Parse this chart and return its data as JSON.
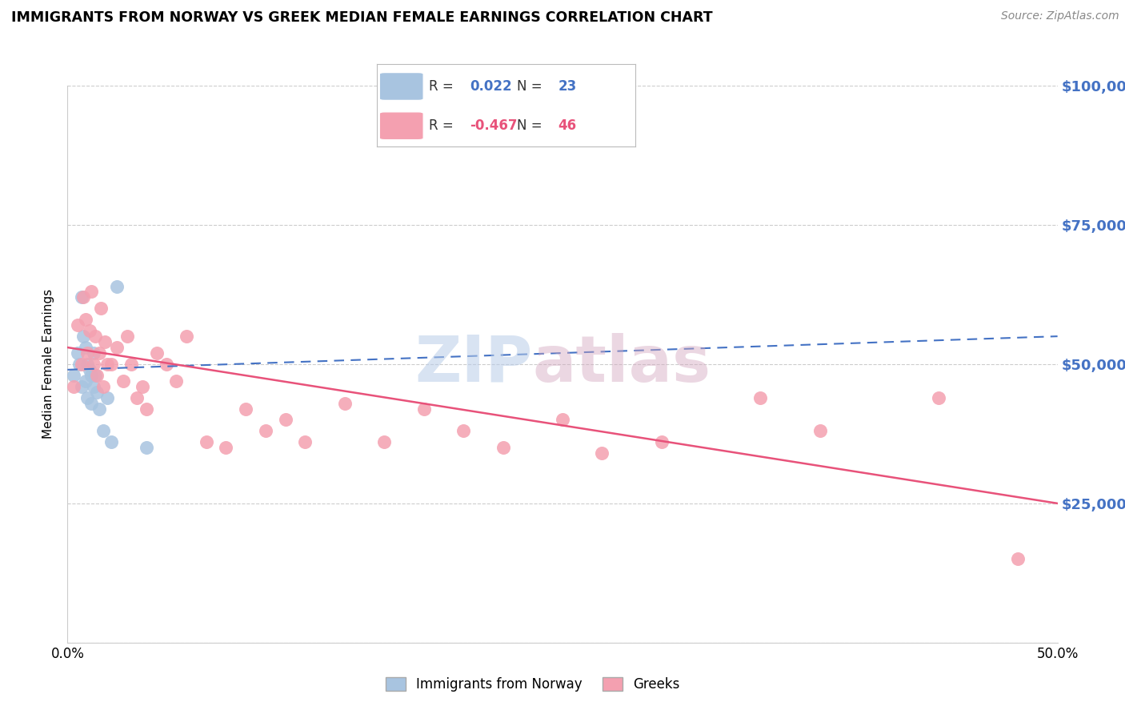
{
  "title": "IMMIGRANTS FROM NORWAY VS GREEK MEDIAN FEMALE EARNINGS CORRELATION CHART",
  "source": "Source: ZipAtlas.com",
  "ylabel": "Median Female Earnings",
  "xlim": [
    0,
    0.5
  ],
  "ylim": [
    0,
    100000
  ],
  "yticks": [
    0,
    25000,
    50000,
    75000,
    100000
  ],
  "ytick_labels": [
    "",
    "$25,000",
    "$50,000",
    "$75,000",
    "$100,000"
  ],
  "xtick_labels": [
    "0.0%",
    "",
    "",
    "",
    "",
    "50.0%"
  ],
  "xticks": [
    0.0,
    0.1,
    0.2,
    0.3,
    0.4,
    0.5
  ],
  "norway_R": 0.022,
  "norway_N": 23,
  "greek_R": -0.467,
  "greek_N": 46,
  "norway_color": "#a8c4e0",
  "greek_color": "#f4a0b0",
  "norway_line_color": "#4472c4",
  "greek_line_color": "#e8527a",
  "legend_norway_fill": "#a8c4e0",
  "legend_greek_fill": "#f4a0b0",
  "yaxis_label_color": "#4472c4",
  "background_color": "#ffffff",
  "watermark_zip": "ZIP",
  "watermark_atlas": "atlas",
  "norway_x": [
    0.003,
    0.005,
    0.006,
    0.007,
    0.007,
    0.008,
    0.009,
    0.009,
    0.01,
    0.01,
    0.011,
    0.012,
    0.012,
    0.013,
    0.013,
    0.014,
    0.015,
    0.016,
    0.018,
    0.02,
    0.022,
    0.025,
    0.04
  ],
  "norway_y": [
    48000,
    52000,
    50000,
    62000,
    46000,
    55000,
    53000,
    47000,
    50000,
    44000,
    49000,
    48000,
    43000,
    52000,
    46000,
    48000,
    45000,
    42000,
    38000,
    44000,
    36000,
    64000,
    35000
  ],
  "greek_x": [
    0.003,
    0.005,
    0.007,
    0.008,
    0.009,
    0.01,
    0.011,
    0.012,
    0.013,
    0.014,
    0.015,
    0.016,
    0.017,
    0.018,
    0.019,
    0.02,
    0.022,
    0.025,
    0.028,
    0.03,
    0.032,
    0.035,
    0.038,
    0.04,
    0.045,
    0.05,
    0.055,
    0.06,
    0.07,
    0.08,
    0.09,
    0.1,
    0.11,
    0.12,
    0.14,
    0.16,
    0.18,
    0.2,
    0.22,
    0.25,
    0.27,
    0.3,
    0.35,
    0.38,
    0.44,
    0.48
  ],
  "greek_y": [
    46000,
    57000,
    50000,
    62000,
    58000,
    52000,
    56000,
    63000,
    50000,
    55000,
    48000,
    52000,
    60000,
    46000,
    54000,
    50000,
    50000,
    53000,
    47000,
    55000,
    50000,
    44000,
    46000,
    42000,
    52000,
    50000,
    47000,
    55000,
    36000,
    35000,
    42000,
    38000,
    40000,
    36000,
    43000,
    36000,
    42000,
    38000,
    35000,
    40000,
    34000,
    36000,
    44000,
    38000,
    44000,
    15000
  ]
}
